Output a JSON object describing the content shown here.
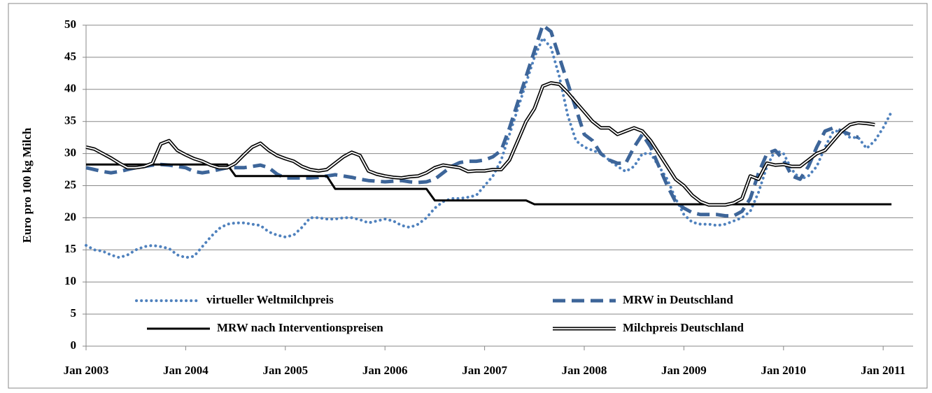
{
  "chart_data": {
    "type": "line",
    "y_label": "Euro pro 100 kg Milch",
    "categories": [
      "Jan 2003",
      null,
      null,
      null,
      null,
      null,
      null,
      null,
      null,
      null,
      null,
      null,
      "Jan 2004",
      null,
      null,
      null,
      null,
      null,
      null,
      null,
      null,
      null,
      null,
      null,
      "Jan 2005",
      null,
      null,
      null,
      null,
      null,
      null,
      null,
      null,
      null,
      null,
      null,
      "Jan 2006",
      null,
      null,
      null,
      null,
      null,
      null,
      null,
      null,
      null,
      null,
      null,
      "Jan 2007",
      null,
      null,
      null,
      null,
      null,
      null,
      null,
      null,
      null,
      null,
      null,
      "Jan 2008",
      null,
      null,
      null,
      null,
      null,
      null,
      null,
      null,
      null,
      null,
      null,
      "Jan 2009",
      null,
      null,
      null,
      null,
      null,
      null,
      null,
      null,
      null,
      null,
      null,
      "Jan 2010",
      null,
      null,
      null,
      null,
      null,
      null,
      null,
      null,
      null,
      null,
      null,
      "Jan 2011",
      null
    ],
    "ylim": [
      0,
      50
    ],
    "yticks": [
      0,
      5,
      10,
      15,
      20,
      25,
      30,
      35,
      40,
      45,
      50
    ],
    "grid": true,
    "series": [
      {
        "name": "virtueller Weltmilchpreis",
        "color": "#4f81bd",
        "style": "dot",
        "values": [
          15.7,
          15,
          14.8,
          14.2,
          13.8,
          14.2,
          15,
          15.5,
          15.7,
          15.5,
          15.2,
          14.2,
          13.8,
          14,
          15.5,
          17,
          18.3,
          19,
          19.2,
          19.2,
          19,
          18.8,
          17.8,
          17.3,
          17,
          17.3,
          18.5,
          20,
          20,
          19.8,
          19.8,
          20,
          20,
          19.7,
          19.2,
          19.5,
          19.8,
          19.5,
          18.8,
          18.5,
          19,
          20,
          21.5,
          22.5,
          23,
          23,
          23.2,
          23.5,
          25,
          26.5,
          29,
          33,
          37,
          41,
          45,
          48,
          46.5,
          42,
          36,
          32,
          31,
          30.5,
          30,
          29,
          28,
          27.2,
          28,
          30,
          30,
          28,
          26,
          23,
          20.5,
          19.3,
          19,
          19,
          18.8,
          19,
          19.5,
          20,
          21,
          24,
          28,
          30.5,
          30,
          27.5,
          26,
          26.5,
          28,
          31,
          33.5,
          33.5,
          32.5,
          32.5,
          30.8,
          32,
          34,
          36.5
        ]
      },
      {
        "name": "MRW in Deutschland",
        "color": "#3d6599",
        "style": "dash",
        "values": [
          27.8,
          27.5,
          27.2,
          27,
          27.2,
          27.5,
          27.8,
          28,
          28.2,
          28.3,
          28.2,
          28,
          27.8,
          27.2,
          27,
          27.2,
          27.5,
          27.8,
          27.8,
          27.8,
          28,
          28.2,
          27.8,
          26.8,
          26.2,
          26.2,
          26.2,
          26.2,
          26.3,
          26.5,
          26.7,
          26.5,
          26.3,
          26,
          25.8,
          25.7,
          25.6,
          25.7,
          25.8,
          25.6,
          25.5,
          25.6,
          26,
          27,
          28,
          28.6,
          28.8,
          28.8,
          29,
          29.5,
          30.5,
          34,
          38,
          42,
          46,
          50,
          49,
          45,
          41,
          37,
          33,
          32,
          30,
          29,
          28.5,
          28.5,
          31,
          33,
          31,
          28,
          25,
          22.5,
          21.5,
          20.8,
          20.5,
          20.5,
          20.5,
          20.3,
          20.3,
          21,
          23,
          27,
          30,
          30.5,
          29,
          26.5,
          26,
          28,
          31,
          33.5,
          34,
          33.5,
          33,
          32.5,
          null,
          null,
          null,
          null
        ]
      },
      {
        "name": "MRW nach Interventionspreisen",
        "color": "#000000",
        "style": "solid",
        "values": [
          28.3,
          28.3,
          28.3,
          28.3,
          28.3,
          28.3,
          28.3,
          28.3,
          28.3,
          28.3,
          28.3,
          28.3,
          28.3,
          28.3,
          28.3,
          28.3,
          28.3,
          28.3,
          26.5,
          26.5,
          26.5,
          26.5,
          26.5,
          26.5,
          26.5,
          26.5,
          26.5,
          26.5,
          26.5,
          26.5,
          24.5,
          24.5,
          24.5,
          24.5,
          24.5,
          24.5,
          24.5,
          24.5,
          24.5,
          24.5,
          24.5,
          24.5,
          22.7,
          22.7,
          22.7,
          22.7,
          22.7,
          22.7,
          22.7,
          22.7,
          22.7,
          22.7,
          22.7,
          22.7,
          22.1,
          22.1,
          22.1,
          22.1,
          22.1,
          22.1,
          22.1,
          22.1,
          22.1,
          22.1,
          22.1,
          22.1,
          22.1,
          22.1,
          22.1,
          22.1,
          22.1,
          22.1,
          22.1,
          22.1,
          22.1,
          22.1,
          22.1,
          22.1,
          22.1,
          22.1,
          22.1,
          22.1,
          22.1,
          22.1,
          22.1,
          22.1,
          22.1,
          22.1,
          22.1,
          22.1,
          22.1,
          22.1,
          22.1,
          22.1,
          22.1,
          22.1,
          22.1,
          22.1
        ]
      },
      {
        "name": "Milchpreis Deutschland",
        "color": "#000000",
        "style": "double",
        "values": [
          31,
          30.7,
          30,
          29.3,
          28.5,
          27.8,
          27.8,
          28,
          28.5,
          31.5,
          32,
          30.5,
          29.8,
          29.2,
          28.8,
          28.2,
          27.8,
          27.8,
          28.5,
          29.8,
          31,
          31.6,
          30.5,
          29.7,
          29.2,
          28.8,
          28,
          27.5,
          27.3,
          27.5,
          28.5,
          29.5,
          30.2,
          29.7,
          27.3,
          26.8,
          26.5,
          26.3,
          26.2,
          26.4,
          26.5,
          27,
          27.8,
          28.2,
          28,
          27.8,
          27.2,
          27.3,
          27.3,
          27.5,
          27.5,
          29,
          32,
          35,
          37,
          40.5,
          41,
          40.8,
          39.5,
          38,
          36.5,
          35,
          34,
          34,
          33,
          33.5,
          34,
          33.5,
          32,
          30,
          28,
          26,
          25,
          23.5,
          22.5,
          22,
          22,
          22,
          22.3,
          23,
          26.5,
          26,
          28.5,
          28.2,
          28.3,
          28,
          28,
          29,
          30,
          30.5,
          32,
          33.5,
          34.5,
          34.8,
          34.7,
          34.5,
          null,
          null
        ]
      }
    ]
  }
}
